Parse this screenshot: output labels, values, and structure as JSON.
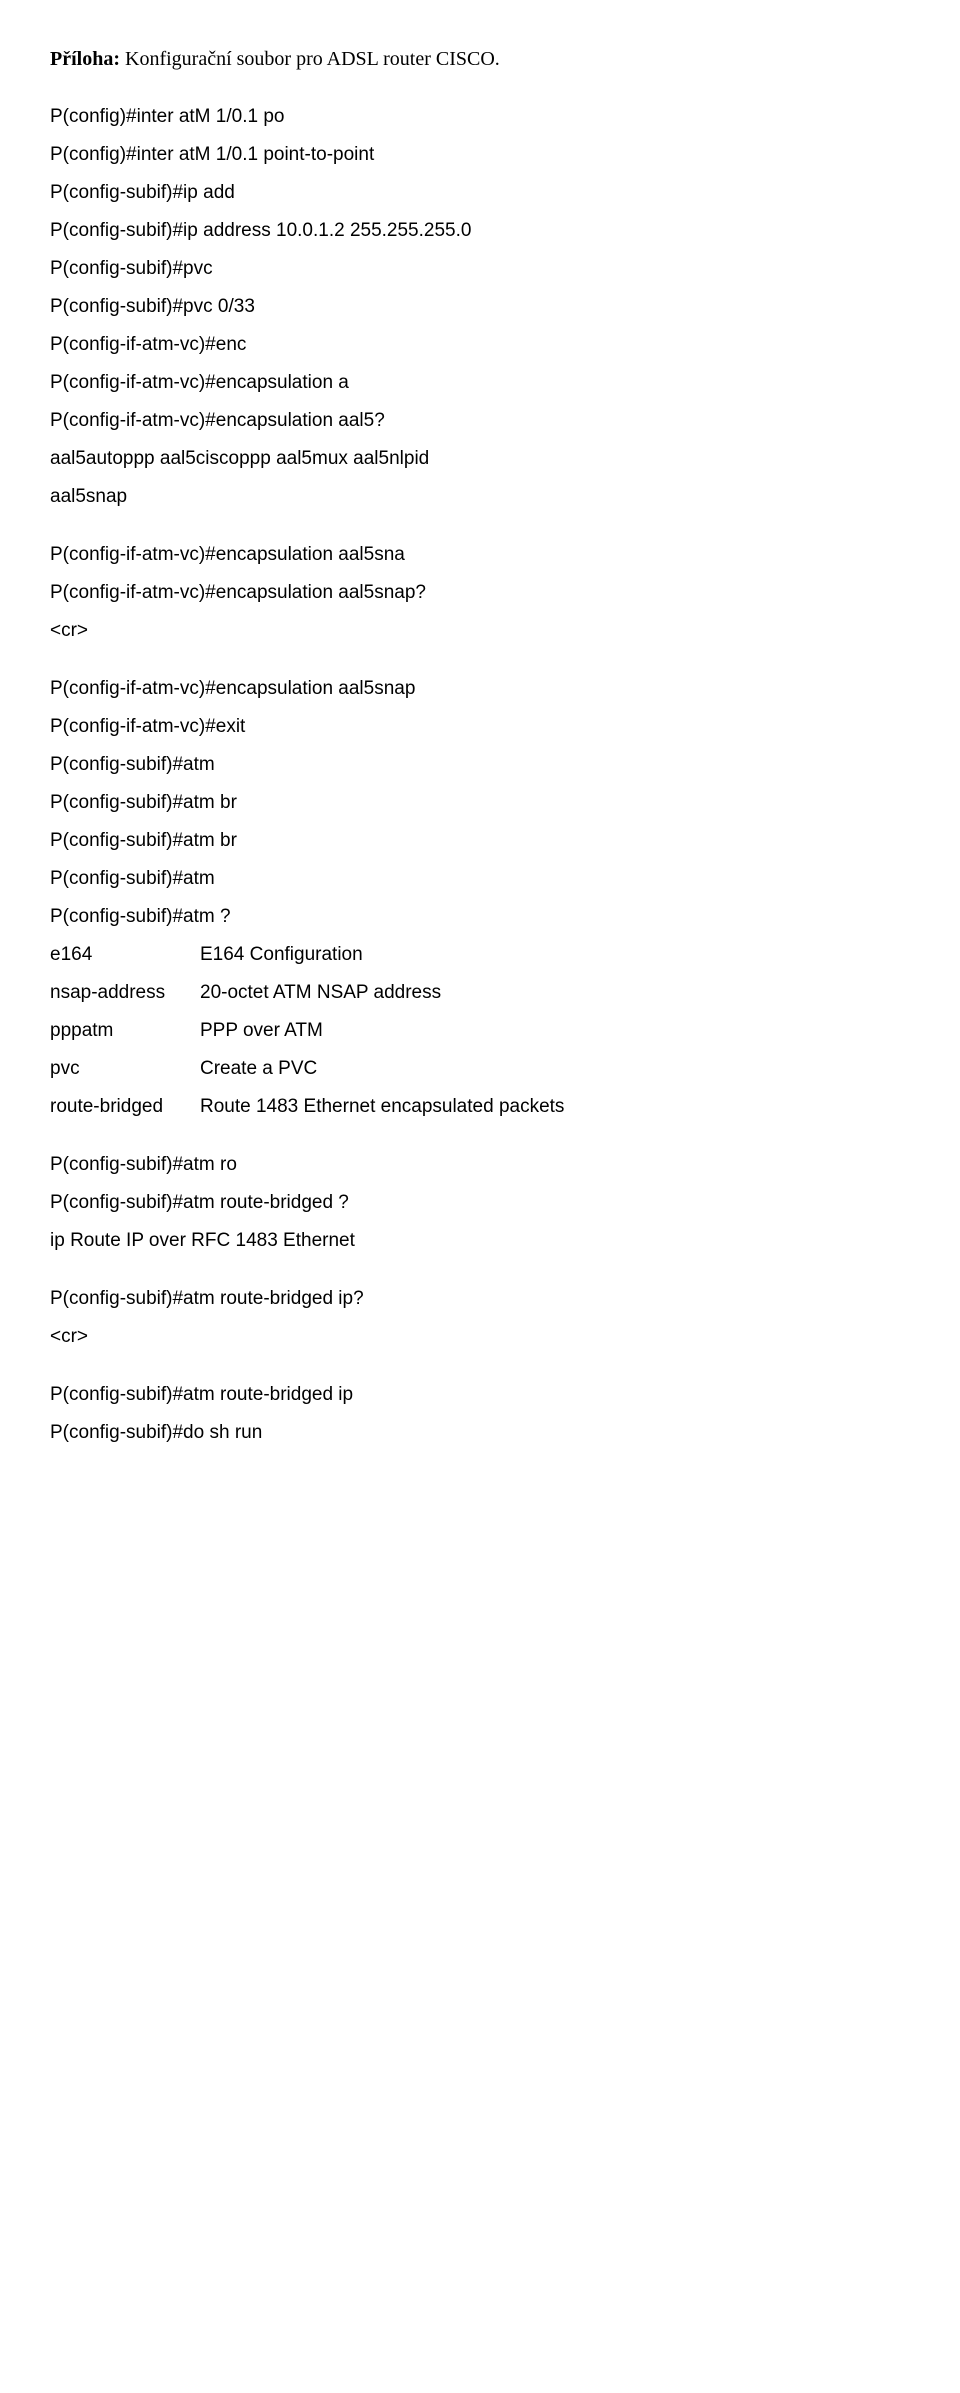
{
  "heading": {
    "label": "Příloha:",
    "text": "  Konfigurační soubor pro ADSL router CISCO."
  },
  "block1": [
    "P(config)#inter atM 1/0.1 po",
    "P(config)#inter atM 1/0.1 point-to-point",
    "P(config-subif)#ip add",
    "P(config-subif)#ip address 10.0.1.2 255.255.255.0",
    "P(config-subif)#pvc",
    "P(config-subif)#pvc 0/33",
    "P(config-if-atm-vc)#enc",
    "P(config-if-atm-vc)#encapsulation a",
    "P(config-if-atm-vc)#encapsulation aal5?",
    "aal5autoppp  aal5ciscoppp  aal5mux  aal5nlpid",
    "aal5snap"
  ],
  "block2": [
    "P(config-if-atm-vc)#encapsulation aal5sna",
    "P(config-if-atm-vc)#encapsulation aal5snap?",
    " <cr>"
  ],
  "block3": [
    "P(config-if-atm-vc)#encapsulation aal5snap",
    "P(config-if-atm-vc)#exit",
    "P(config-subif)#atm",
    "P(config-subif)#atm br",
    "P(config-subif)#atm br",
    "P(config-subif)#atm",
    "P(config-subif)#atm ?"
  ],
  "options": [
    {
      "key": " e164",
      "desc": "E164 Configuration"
    },
    {
      "key": " nsap-address",
      "desc": "20-octet ATM NSAP address"
    },
    {
      "key": " pppatm",
      "desc": "PPP over ATM"
    },
    {
      "key": " pvc",
      "desc": "Create a PVC"
    },
    {
      "key": " route-bridged",
      "desc": "Route 1483 Ethernet encapsulated packets"
    }
  ],
  "block4": [
    "P(config-subif)#atm ro",
    "P(config-subif)#atm route-bridged ?",
    "  ip  Route IP over RFC 1483 Ethernet"
  ],
  "block5": [
    "P(config-subif)#atm route-bridged ip?",
    " <cr>"
  ],
  "block6": [
    "P(config-subif)#atm route-bridged ip",
    "P(config-subif)#do sh run"
  ]
}
